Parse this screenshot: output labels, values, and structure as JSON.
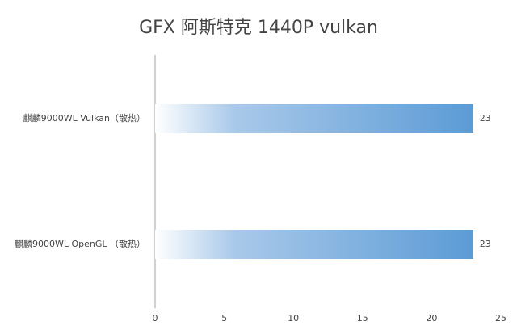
{
  "chart_data": {
    "type": "bar",
    "orientation": "horizontal",
    "title": "GFX 阿斯特克 1440P vulkan",
    "categories": [
      "麒麟9000WL Vulkan（散热）",
      "麒麟9000WL OpenGL （散热）"
    ],
    "values": [
      23,
      23
    ],
    "color": "#5b9bd5",
    "xlim": [
      0,
      25
    ],
    "xticks": [
      0,
      5,
      10,
      15,
      20,
      25
    ],
    "grid": false
  }
}
